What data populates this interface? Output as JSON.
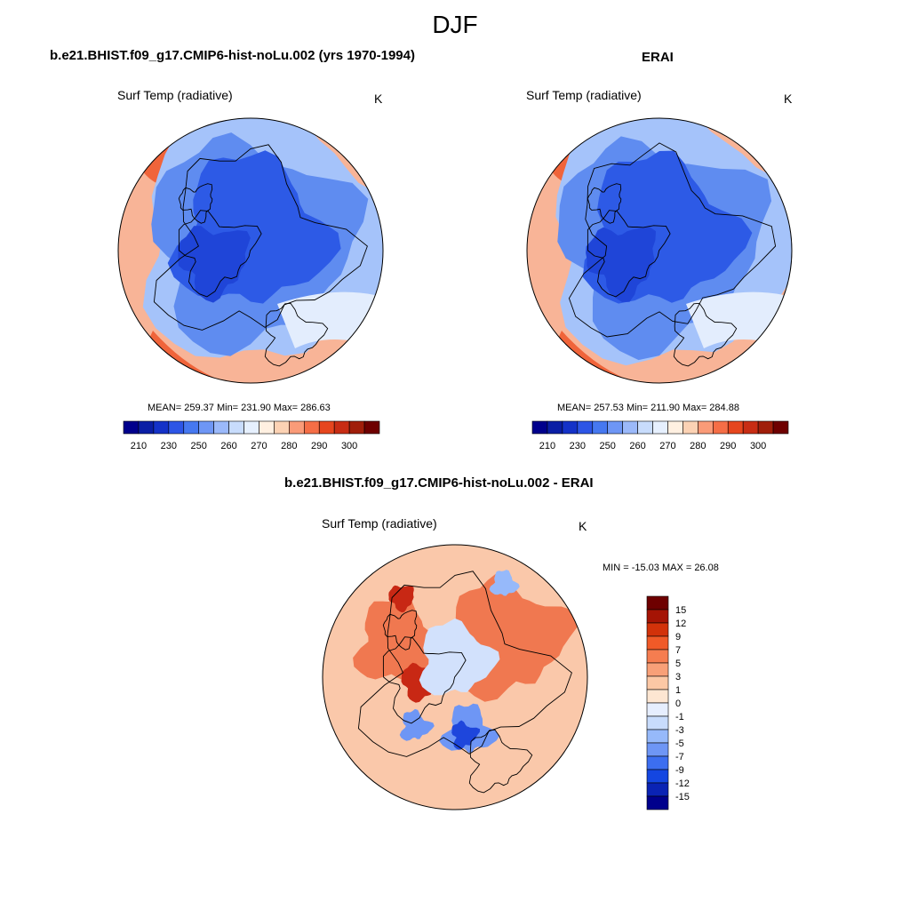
{
  "figure": {
    "title": "DJF"
  },
  "panels": [
    {
      "title": "b.e21.BHIST.f09_g17.CMIP6-hist-noLu.002 (yrs 1970-1994)",
      "variable": "Surf Temp (radiative)",
      "units": "K",
      "stats": "MEAN= 259.37  Min= 231.90  Max= 286.63",
      "mean": 259.37,
      "min": 231.9,
      "max": 286.63
    },
    {
      "title": "ERAI",
      "variable": "Surf Temp (radiative)",
      "units": "K",
      "stats": "MEAN= 257.53  Min= 211.90  Max= 284.88",
      "mean": 257.53,
      "min": 211.9,
      "max": 284.88
    },
    {
      "title": "b.e21.BHIST.f09_g17.CMIP6-hist-noLu.002 - ERAI",
      "variable": "Surf Temp (radiative)",
      "units": "K",
      "stats": "MIN = -15.03 MAX =  26.08",
      "min": -15.03,
      "max": 26.08
    }
  ],
  "field_colorbar": {
    "labels": [
      "210",
      "230",
      "250",
      "260",
      "270",
      "280",
      "290",
      "300"
    ],
    "colors": [
      "#00008c",
      "#0a1ea5",
      "#1432c8",
      "#2d55e6",
      "#4678f0",
      "#6e96f5",
      "#9bb9fa",
      "#c8dcfc",
      "#e6f0fe",
      "#fff0e1",
      "#fcd2b4",
      "#fa9b78",
      "#f56e46",
      "#e6461e",
      "#c82d14",
      "#a01e0a",
      "#6e0000"
    ]
  },
  "diff_colorbar": {
    "labels": [
      "15",
      "12",
      "9",
      "7",
      "5",
      "3",
      "1",
      "0",
      "-1",
      "-3",
      "-5",
      "-7",
      "-9",
      "-12",
      "-15"
    ],
    "colors": [
      "#6e0000",
      "#a51405",
      "#d2320a",
      "#f05a28",
      "#f57d50",
      "#f8a078",
      "#fcc8a5",
      "#fde6d2",
      "#e6eefe",
      "#c8dcfc",
      "#96b9fa",
      "#6e96f5",
      "#3c6ef0",
      "#1446e1",
      "#0a23b4",
      "#00008c"
    ]
  },
  "map_colors": {
    "ocean_warm": "#f8b497",
    "warm_strong": "#f0643a",
    "cold_core": "#2d5ae6",
    "cold_mid": "#5f8cf0",
    "cold_light": "#a5c3fa",
    "neutral_pale": "#e3edfd",
    "diff_base": "#fac8aa",
    "diff_warm": "#f07850",
    "diff_hot": "#c82814",
    "diff_cold": "#1e46dc",
    "diff_pale_blue": "#d2e1fc"
  }
}
